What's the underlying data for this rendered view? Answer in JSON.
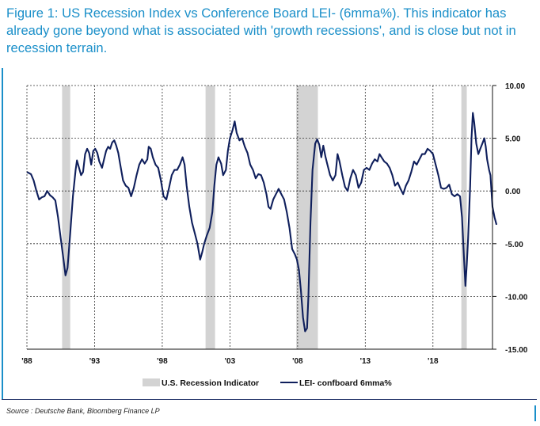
{
  "figure": {
    "title": "Figure 1: US Recession Index vs Conference Board LEI- (6mma%). This indicator has already gone beyond what is associated with 'growth recessions', and is close but not in recession terrain.",
    "source": "Source : Deutsche Bank, Bloomberg Finance LP"
  },
  "colors": {
    "title": "#1a8fc9",
    "line": "#0f1f5c",
    "recession": "#d3d3d3"
  },
  "chart_data": {
    "type": "line",
    "xlim": [
      1988,
      2022.4
    ],
    "ylim": [
      -15,
      10
    ],
    "x_ticks": [
      {
        "value": 1988,
        "label": "'88"
      },
      {
        "value": 1993,
        "label": "'93"
      },
      {
        "value": 1998,
        "label": "'98"
      },
      {
        "value": 2003,
        "label": "'03"
      },
      {
        "value": 2008,
        "label": "'08"
      },
      {
        "value": 2013,
        "label": "'13"
      },
      {
        "value": 2018,
        "label": "'18"
      }
    ],
    "y_ticks": [
      {
        "value": 10,
        "label": "10.00"
      },
      {
        "value": 5,
        "label": "5.00"
      },
      {
        "value": 0,
        "label": "0.00"
      },
      {
        "value": -5,
        "label": "-5.00"
      },
      {
        "value": -10,
        "label": "-10.00"
      },
      {
        "value": -15,
        "label": "-15.00"
      }
    ],
    "grid": true,
    "legend_position": "bottom",
    "recessions": {
      "name": "U.S. Recession Indicator",
      "periods": [
        [
          1990.6,
          1991.2
        ],
        [
          2001.2,
          2001.9
        ],
        [
          2007.9,
          2009.5
        ],
        [
          2020.1,
          2020.5
        ]
      ]
    },
    "series": [
      {
        "name": "LEI- confboard 6mma%",
        "points": [
          [
            1988.0,
            1.8
          ],
          [
            1988.3,
            1.6
          ],
          [
            1988.5,
            1.0
          ],
          [
            1988.7,
            0.0
          ],
          [
            1988.9,
            -0.8
          ],
          [
            1989.1,
            -0.6
          ],
          [
            1989.3,
            -0.5
          ],
          [
            1989.5,
            0.0
          ],
          [
            1989.7,
            -0.4
          ],
          [
            1989.9,
            -0.6
          ],
          [
            1990.1,
            -0.9
          ],
          [
            1990.3,
            -2.5
          ],
          [
            1990.5,
            -4.5
          ],
          [
            1990.7,
            -6.5
          ],
          [
            1990.85,
            -8.0
          ],
          [
            1991.0,
            -7.3
          ],
          [
            1991.2,
            -4.0
          ],
          [
            1991.4,
            -0.5
          ],
          [
            1991.6,
            2.0
          ],
          [
            1991.7,
            2.9
          ],
          [
            1991.85,
            2.2
          ],
          [
            1992.0,
            1.5
          ],
          [
            1992.15,
            1.8
          ],
          [
            1992.3,
            3.5
          ],
          [
            1992.45,
            4.0
          ],
          [
            1992.6,
            3.6
          ],
          [
            1992.75,
            2.5
          ],
          [
            1992.9,
            3.8
          ],
          [
            1993.05,
            4.0
          ],
          [
            1993.2,
            3.6
          ],
          [
            1993.35,
            2.8
          ],
          [
            1993.55,
            2.2
          ],
          [
            1993.7,
            3.0
          ],
          [
            1993.85,
            3.8
          ],
          [
            1994.0,
            4.2
          ],
          [
            1994.15,
            4.0
          ],
          [
            1994.3,
            4.6
          ],
          [
            1994.45,
            4.8
          ],
          [
            1994.6,
            4.3
          ],
          [
            1994.75,
            3.6
          ],
          [
            1994.9,
            2.5
          ],
          [
            1995.1,
            1.0
          ],
          [
            1995.3,
            0.5
          ],
          [
            1995.5,
            0.3
          ],
          [
            1995.7,
            -0.5
          ],
          [
            1995.9,
            0.3
          ],
          [
            1996.1,
            1.5
          ],
          [
            1996.3,
            2.5
          ],
          [
            1996.5,
            3.0
          ],
          [
            1996.7,
            2.6
          ],
          [
            1996.9,
            3.0
          ],
          [
            1997.0,
            4.2
          ],
          [
            1997.15,
            4.0
          ],
          [
            1997.3,
            3.2
          ],
          [
            1997.5,
            2.5
          ],
          [
            1997.7,
            2.2
          ],
          [
            1997.9,
            1.0
          ],
          [
            1998.1,
            -0.5
          ],
          [
            1998.3,
            -0.8
          ],
          [
            1998.5,
            0.3
          ],
          [
            1998.7,
            1.5
          ],
          [
            1998.9,
            2.0
          ],
          [
            1999.1,
            2.0
          ],
          [
            1999.3,
            2.5
          ],
          [
            1999.5,
            3.2
          ],
          [
            1999.65,
            2.5
          ],
          [
            1999.8,
            0.5
          ],
          [
            2000.0,
            -1.5
          ],
          [
            2000.2,
            -3.0
          ],
          [
            2000.4,
            -4.0
          ],
          [
            2000.6,
            -5.0
          ],
          [
            2000.8,
            -6.5
          ],
          [
            2000.95,
            -5.8
          ],
          [
            2001.1,
            -5.0
          ],
          [
            2001.3,
            -4.2
          ],
          [
            2001.5,
            -3.5
          ],
          [
            2001.7,
            -2.0
          ],
          [
            2001.85,
            0.5
          ],
          [
            2002.0,
            2.5
          ],
          [
            2002.15,
            3.2
          ],
          [
            2002.35,
            2.6
          ],
          [
            2002.5,
            1.5
          ],
          [
            2002.7,
            2.0
          ],
          [
            2002.85,
            3.8
          ],
          [
            2003.0,
            5.0
          ],
          [
            2003.2,
            5.8
          ],
          [
            2003.35,
            6.6
          ],
          [
            2003.5,
            5.5
          ],
          [
            2003.7,
            4.8
          ],
          [
            2003.9,
            5.0
          ],
          [
            2004.1,
            4.2
          ],
          [
            2004.3,
            3.6
          ],
          [
            2004.5,
            2.5
          ],
          [
            2004.7,
            2.0
          ],
          [
            2004.9,
            1.2
          ],
          [
            2005.1,
            1.6
          ],
          [
            2005.3,
            1.5
          ],
          [
            2005.5,
            0.8
          ],
          [
            2005.7,
            -0.3
          ],
          [
            2005.85,
            -1.5
          ],
          [
            2006.0,
            -1.7
          ],
          [
            2006.2,
            -0.8
          ],
          [
            2006.4,
            -0.3
          ],
          [
            2006.6,
            0.2
          ],
          [
            2006.8,
            -0.3
          ],
          [
            2007.0,
            -0.8
          ],
          [
            2007.2,
            -2.0
          ],
          [
            2007.4,
            -3.5
          ],
          [
            2007.6,
            -5.5
          ],
          [
            2007.8,
            -6.0
          ],
          [
            2007.95,
            -6.5
          ],
          [
            2008.1,
            -7.5
          ],
          [
            2008.25,
            -9.5
          ],
          [
            2008.4,
            -12.0
          ],
          [
            2008.55,
            -13.3
          ],
          [
            2008.7,
            -13.0
          ],
          [
            2008.8,
            -10.0
          ],
          [
            2008.95,
            -3.0
          ],
          [
            2009.1,
            2.0
          ],
          [
            2009.3,
            4.5
          ],
          [
            2009.45,
            4.9
          ],
          [
            2009.6,
            4.4
          ],
          [
            2009.75,
            3.2
          ],
          [
            2009.9,
            4.3
          ],
          [
            2010.05,
            3.3
          ],
          [
            2010.2,
            2.5
          ],
          [
            2010.4,
            1.5
          ],
          [
            2010.6,
            1.0
          ],
          [
            2010.8,
            1.5
          ],
          [
            2010.95,
            3.5
          ],
          [
            2011.1,
            2.8
          ],
          [
            2011.3,
            1.5
          ],
          [
            2011.5,
            0.4
          ],
          [
            2011.7,
            0.0
          ],
          [
            2011.9,
            1.2
          ],
          [
            2012.1,
            2.0
          ],
          [
            2012.3,
            1.5
          ],
          [
            2012.5,
            0.3
          ],
          [
            2012.7,
            0.8
          ],
          [
            2012.9,
            2.0
          ],
          [
            2013.1,
            2.2
          ],
          [
            2013.3,
            2.0
          ],
          [
            2013.5,
            2.6
          ],
          [
            2013.7,
            3.0
          ],
          [
            2013.9,
            2.8
          ],
          [
            2014.05,
            3.5
          ],
          [
            2014.2,
            3.2
          ],
          [
            2014.4,
            2.8
          ],
          [
            2014.6,
            2.6
          ],
          [
            2014.8,
            2.2
          ],
          [
            2015.0,
            1.5
          ],
          [
            2015.2,
            0.5
          ],
          [
            2015.4,
            0.8
          ],
          [
            2015.6,
            0.2
          ],
          [
            2015.8,
            -0.3
          ],
          [
            2016.0,
            0.5
          ],
          [
            2016.2,
            1.0
          ],
          [
            2016.4,
            1.8
          ],
          [
            2016.6,
            2.8
          ],
          [
            2016.8,
            2.5
          ],
          [
            2017.0,
            3.0
          ],
          [
            2017.2,
            3.5
          ],
          [
            2017.4,
            3.5
          ],
          [
            2017.6,
            4.0
          ],
          [
            2017.8,
            3.8
          ],
          [
            2018.0,
            3.5
          ],
          [
            2018.2,
            2.5
          ],
          [
            2018.4,
            1.5
          ],
          [
            2018.6,
            0.3
          ],
          [
            2018.8,
            0.2
          ],
          [
            2019.0,
            0.3
          ],
          [
            2019.2,
            0.6
          ],
          [
            2019.4,
            -0.3
          ],
          [
            2019.6,
            -0.5
          ],
          [
            2019.8,
            -0.3
          ],
          [
            2020.0,
            -0.5
          ],
          [
            2020.15,
            -2.5
          ],
          [
            2020.3,
            -6.5
          ],
          [
            2020.4,
            -9.0
          ],
          [
            2020.5,
            -7.0
          ],
          [
            2020.6,
            -4.5
          ],
          [
            2020.75,
            0.5
          ],
          [
            2020.85,
            5.0
          ],
          [
            2020.95,
            7.4
          ],
          [
            2021.05,
            6.5
          ],
          [
            2021.2,
            4.5
          ],
          [
            2021.35,
            3.5
          ],
          [
            2021.5,
            4.0
          ],
          [
            2021.65,
            4.5
          ],
          [
            2021.8,
            5.0
          ],
          [
            2021.9,
            4.2
          ],
          [
            2022.0,
            3.0
          ],
          [
            2022.15,
            2.0
          ],
          [
            2022.25,
            1.5
          ],
          [
            2022.4,
            -1.5
          ],
          [
            2022.55,
            -2.5
          ],
          [
            2022.7,
            -3.2
          ]
        ]
      }
    ]
  }
}
